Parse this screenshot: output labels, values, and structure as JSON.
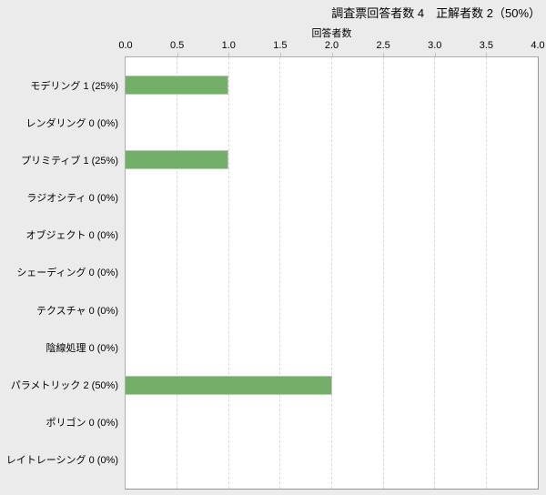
{
  "chart_data": {
    "type": "bar",
    "orientation": "horizontal",
    "title": "調査票回答者数 4　正解者数 2（50%）",
    "xlabel": "回答者数",
    "categories": [
      "モデリング",
      "レンダリング",
      "プリミティブ",
      "ラジオシティ",
      "オブジェクト",
      "シェーディング",
      "テクスチャ",
      "陰線処理",
      "パラメトリック",
      "ポリゴン",
      "レイトレーシング"
    ],
    "category_display_labels": [
      "モデリング 1 (25%)",
      "レンダリング 0 (0%)",
      "プリミティブ 1 (25%)",
      "ラジオシティ 0 (0%)",
      "オブジェクト 0 (0%)",
      "シェーディング 0 (0%)",
      "テクスチャ 0 (0%)",
      "陰線処理 0 (0%)",
      "パラメトリック 2 (50%)",
      "ポリゴン 0 (0%)",
      "レイトレーシング 0 (0%)"
    ],
    "values": [
      1,
      0,
      1,
      0,
      0,
      0,
      0,
      0,
      2,
      0,
      0
    ],
    "percentages": [
      "25%",
      "0%",
      "25%",
      "0%",
      "0%",
      "0%",
      "0%",
      "0%",
      "50%",
      "0%",
      "0%"
    ],
    "respondents_total": 4,
    "correct_total": 2,
    "correct_pct": "50%",
    "xlim": [
      0,
      4
    ],
    "xticks": [
      "0.0",
      "0.5",
      "1.0",
      "1.5",
      "2.0",
      "2.5",
      "3.0",
      "3.5",
      "4.0"
    ],
    "grid": "vertical-dashed",
    "legend": "none",
    "colors": {
      "bar_fill": "#73af69",
      "bar_border": "#c1c1c1",
      "background": "#ebebeb",
      "plot_background": "#ffffff",
      "plot_border": "#a6a6a6",
      "gridline": "#dadada",
      "text": "#000000"
    }
  }
}
